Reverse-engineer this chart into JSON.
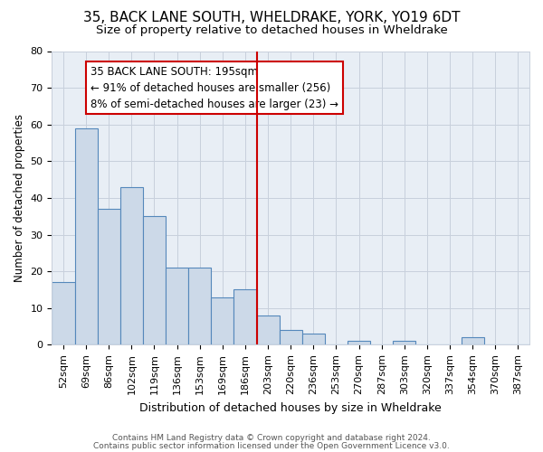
{
  "title1": "35, BACK LANE SOUTH, WHELDRAKE, YORK, YO19 6DT",
  "title2": "Size of property relative to detached houses in Wheldrake",
  "xlabel": "Distribution of detached houses by size in Wheldrake",
  "ylabel": "Number of detached properties",
  "categories": [
    "52sqm",
    "69sqm",
    "86sqm",
    "102sqm",
    "119sqm",
    "136sqm",
    "153sqm",
    "169sqm",
    "186sqm",
    "203sqm",
    "220sqm",
    "236sqm",
    "253sqm",
    "270sqm",
    "287sqm",
    "303sqm",
    "320sqm",
    "337sqm",
    "354sqm",
    "370sqm",
    "387sqm"
  ],
  "values": [
    17,
    59,
    37,
    43,
    35,
    21,
    21,
    13,
    15,
    8,
    4,
    3,
    0,
    1,
    0,
    1,
    0,
    0,
    2,
    0,
    0
  ],
  "bar_color": "#ccd9e8",
  "bar_edge_color": "#5588bb",
  "red_line_x": 8.5,
  "red_line_color": "#cc0000",
  "annotation_line1": "35 BACK LANE SOUTH: 195sqm",
  "annotation_line2": "← 91% of detached houses are smaller (256)",
  "annotation_line3": "8% of semi-detached houses are larger (23) →",
  "annotation_box_color": "#ffffff",
  "annotation_box_edge": "#cc0000",
  "ylim": [
    0,
    80
  ],
  "yticks": [
    0,
    10,
    20,
    30,
    40,
    50,
    60,
    70,
    80
  ],
  "footer1": "Contains HM Land Registry data © Crown copyright and database right 2024.",
  "footer2": "Contains public sector information licensed under the Open Government Licence v3.0.",
  "bg_color": "#ffffff",
  "plot_bg_color": "#e8eef5",
  "grid_color": "#c8d0dc",
  "title1_fontsize": 11,
  "title2_fontsize": 9.5,
  "xlabel_fontsize": 9,
  "ylabel_fontsize": 8.5,
  "tick_fontsize": 8,
  "annotation_fontsize": 8.5,
  "footer_fontsize": 6.5
}
